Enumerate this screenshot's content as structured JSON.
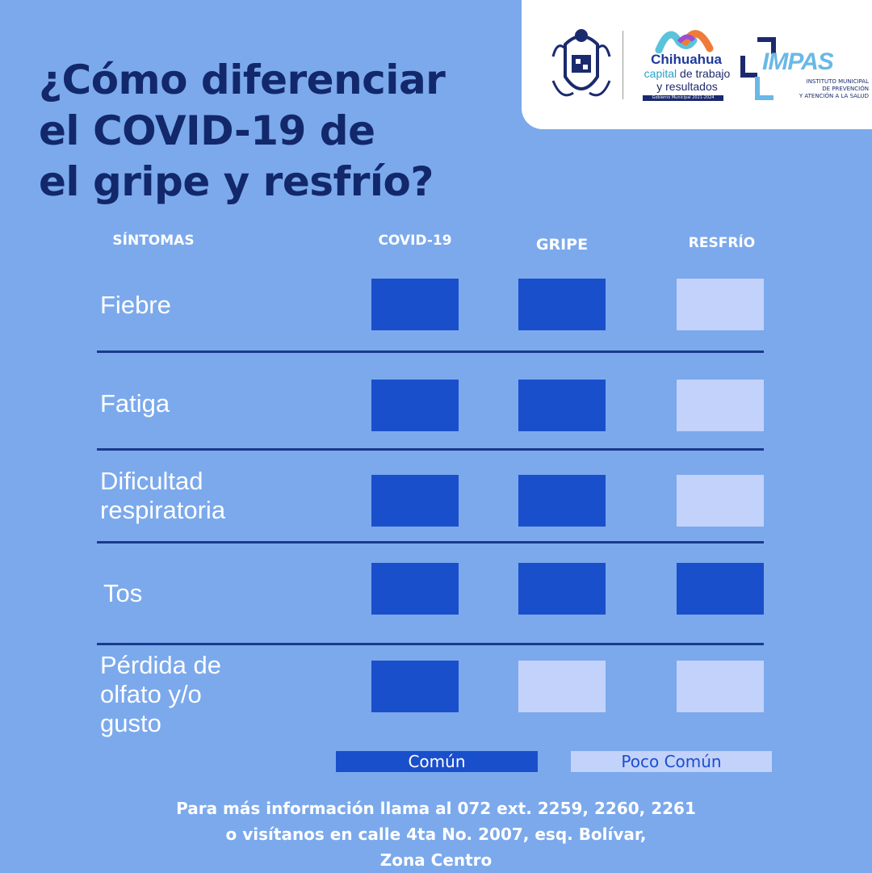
{
  "title": "¿Cómo diferenciar\nel COVID-19 de\nel gripe y resfrío?",
  "logos": {
    "city_name": "Chihuahua",
    "slogan_capital": "capital",
    "slogan_rest": "de trabajo",
    "slogan_line2": "y resultados",
    "government": "Gobierno Municipal 2021-2024",
    "impas": "IMPAS",
    "impas_subtitle": "INSTITUTO MUNICIPAL\nDE PREVENCIÓN\nY ATENCIÓN A LA SALUD"
  },
  "columns": {
    "symptoms": "SÍNTOMAS",
    "covid": "COVID-19",
    "flu": "GRIPE",
    "cold": "RESFRÍO"
  },
  "rows": [
    {
      "symptom": "Fiebre",
      "covid": "common",
      "flu": "common",
      "cold": "uncommon"
    },
    {
      "symptom": "Fatiga",
      "covid": "common",
      "flu": "common",
      "cold": "uncommon"
    },
    {
      "symptom": "Dificultad\nrespiratoria",
      "covid": "common",
      "flu": "common",
      "cold": "uncommon"
    },
    {
      "symptom": "Tos",
      "covid": "common",
      "flu": "common",
      "cold": "common"
    },
    {
      "symptom": "Pérdida de\nolfato y/o\ngusto",
      "covid": "common",
      "flu": "uncommon",
      "cold": "uncommon"
    }
  ],
  "legend": {
    "common": "Común",
    "uncommon": "Poco Común"
  },
  "colors": {
    "background": "#7ba9ec",
    "common": "#1a4fcb",
    "uncommon": "#c3d2fa",
    "title": "#12286b"
  },
  "footer": "Para más información llama al 072 ext. 2259, 2260, 2261\no visítanos en calle 4ta No. 2007, esq. Bolívar,\nZona Centro"
}
